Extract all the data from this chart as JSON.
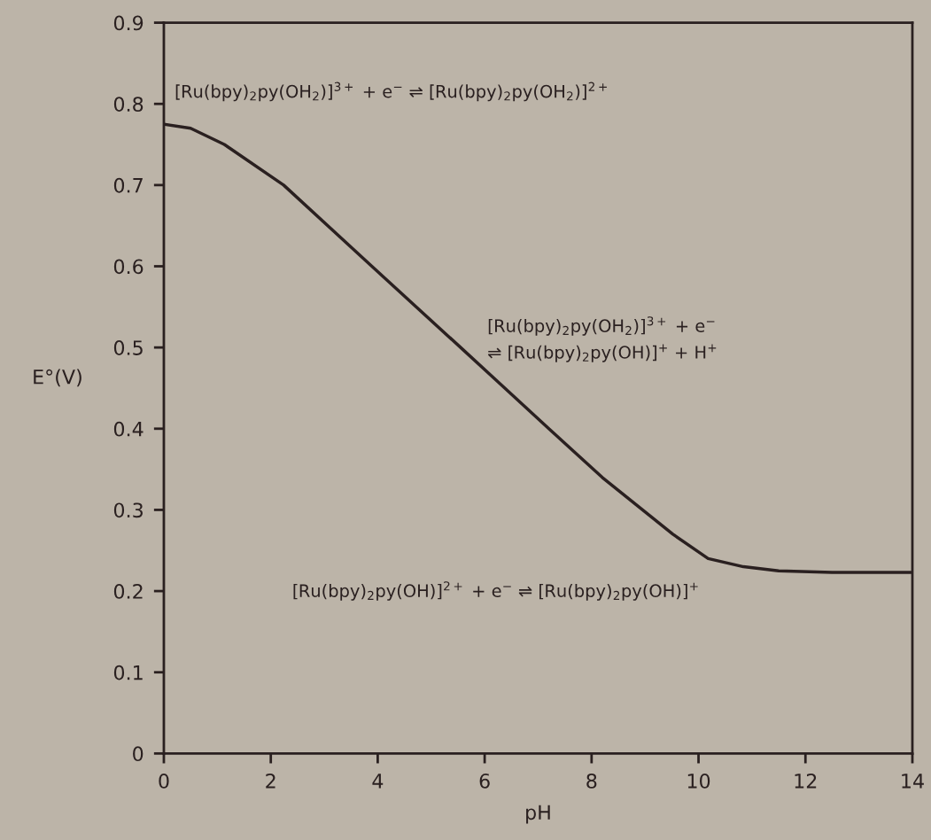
{
  "chart_data": {
    "type": "line",
    "xlabel": "pH",
    "ylabel": "E°(V)",
    "x": [
      0,
      0.5,
      1.13,
      2.24,
      3.89,
      5.55,
      6.21,
      7.2,
      8.2,
      9.52,
      10.18,
      10.84,
      11.5,
      12.5,
      14
    ],
    "series": [
      {
        "color": "#2a2020",
        "values": [
          0.775,
          0.77,
          0.75,
          0.7,
          0.6,
          0.5,
          0.46,
          0.4,
          0.34,
          0.27,
          0.24,
          0.23,
          0.225,
          0.223,
          0.223
        ]
      }
    ],
    "xlim": [
      0,
      14
    ],
    "xticks": [
      0,
      2,
      4,
      6,
      8,
      10,
      12,
      14
    ],
    "ylim": [
      0,
      0.9
    ],
    "yticks": [
      0,
      0.1,
      0.2,
      0.3,
      0.4,
      0.5,
      0.6,
      0.7,
      0.8,
      0.9
    ],
    "grid": false,
    "marker": "none",
    "line_style": "solid",
    "annotations": [
      "[Ru(bpy)$_{2}$py(OH$_{2}$)]$^{3+}$ + e$^{−}$ ⇌ [Ru(bpy)$_{2}$py(OH$_{2}$)]$^{2+}$",
      "[Ru(bpy)$_{2}$py(OH$_{2}$)]$^{3+}$ + e$^{−}$\n⇌ [Ru(bpy)$_{2}$py(OH)]$^{+}$ + H$^{+}$",
      "[Ru(bpy)$_{2}$py(OH)]$^{2+}$ + e$^{−}$ ⇌ [Ru(bpy)$_{2}$py(OH)]$^{+}$"
    ]
  }
}
